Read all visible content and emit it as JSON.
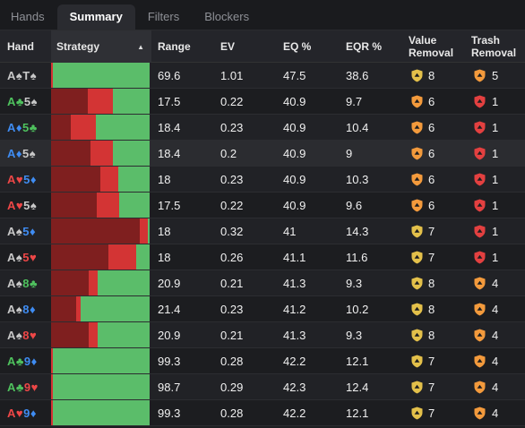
{
  "tabs": [
    {
      "label": "Hands",
      "active": false
    },
    {
      "label": "Summary",
      "active": true
    },
    {
      "label": "Filters",
      "active": false
    },
    {
      "label": "Blockers",
      "active": false
    }
  ],
  "columns": {
    "hand": "Hand",
    "strategy": "Strategy",
    "range": "Range",
    "ev": "EV",
    "eq": "EQ %",
    "eqr": "EQR %",
    "value_removal_1": "Value",
    "value_removal_2": "Removal",
    "trash_removal_1": "Trash",
    "trash_removal_2": "Removal"
  },
  "colors": {
    "spade": "#c8c8c8",
    "club": "#4fc25e",
    "diamond": "#3f8cf2",
    "heart": "#ee4747",
    "strat_dark": "#7f1f1f",
    "strat_red": "#d33434",
    "strat_green": "#5bbd6a",
    "shield_yellow": "#e3c04a",
    "shield_orange": "#f39a3c",
    "shield_red": "#e34040"
  },
  "rows": [
    {
      "hand": [
        {
          "r": "A",
          "s": "spade"
        },
        {
          "r": "T",
          "s": "spade"
        }
      ],
      "strategy": [
        0.0,
        0.02,
        0.98
      ],
      "range": "69.6",
      "ev": "1.01",
      "eq": "47.5",
      "eqr": "38.6",
      "vr": "8",
      "vr_icon": "yellow",
      "tr": "5",
      "tr_icon": "orange"
    },
    {
      "hand": [
        {
          "r": "A",
          "s": "club"
        },
        {
          "r": "5",
          "s": "spade"
        }
      ],
      "strategy": [
        0.37,
        0.26,
        0.37
      ],
      "range": "17.5",
      "ev": "0.22",
      "eq": "40.9",
      "eqr": "9.7",
      "vr": "6",
      "vr_icon": "orange",
      "tr": "1",
      "tr_icon": "red"
    },
    {
      "hand": [
        {
          "r": "A",
          "s": "diamond"
        },
        {
          "r": "5",
          "s": "club"
        }
      ],
      "strategy": [
        0.2,
        0.25,
        0.55
      ],
      "range": "18.4",
      "ev": "0.23",
      "eq": "40.9",
      "eqr": "10.4",
      "vr": "6",
      "vr_icon": "orange",
      "tr": "1",
      "tr_icon": "red"
    },
    {
      "hand": [
        {
          "r": "A",
          "s": "diamond"
        },
        {
          "r": "5",
          "s": "spade"
        }
      ],
      "strategy": [
        0.4,
        0.23,
        0.37
      ],
      "range": "18.4",
      "ev": "0.2",
      "eq": "40.9",
      "eqr": "9",
      "vr": "6",
      "vr_icon": "orange",
      "tr": "1",
      "tr_icon": "red"
    },
    {
      "hand": [
        {
          "r": "A",
          "s": "heart"
        },
        {
          "r": "5",
          "s": "diamond"
        }
      ],
      "strategy": [
        0.5,
        0.18,
        0.32
      ],
      "range": "18",
      "ev": "0.23",
      "eq": "40.9",
      "eqr": "10.3",
      "vr": "6",
      "vr_icon": "orange",
      "tr": "1",
      "tr_icon": "red"
    },
    {
      "hand": [
        {
          "r": "A",
          "s": "heart"
        },
        {
          "r": "5",
          "s": "spade"
        }
      ],
      "strategy": [
        0.46,
        0.23,
        0.31
      ],
      "range": "17.5",
      "ev": "0.22",
      "eq": "40.9",
      "eqr": "9.6",
      "vr": "6",
      "vr_icon": "orange",
      "tr": "1",
      "tr_icon": "red"
    },
    {
      "hand": [
        {
          "r": "A",
          "s": "spade"
        },
        {
          "r": "5",
          "s": "diamond"
        }
      ],
      "strategy": [
        0.9,
        0.08,
        0.02
      ],
      "range": "18",
      "ev": "0.32",
      "eq": "41",
      "eqr": "14.3",
      "vr": "7",
      "vr_icon": "yellow",
      "tr": "1",
      "tr_icon": "red"
    },
    {
      "hand": [
        {
          "r": "A",
          "s": "spade"
        },
        {
          "r": "5",
          "s": "heart"
        }
      ],
      "strategy": [
        0.58,
        0.28,
        0.14
      ],
      "range": "18",
      "ev": "0.26",
      "eq": "41.1",
      "eqr": "11.6",
      "vr": "7",
      "vr_icon": "yellow",
      "tr": "1",
      "tr_icon": "red"
    },
    {
      "hand": [
        {
          "r": "A",
          "s": "spade"
        },
        {
          "r": "8",
          "s": "club"
        }
      ],
      "strategy": [
        0.38,
        0.09,
        0.53
      ],
      "range": "20.9",
      "ev": "0.21",
      "eq": "41.3",
      "eqr": "9.3",
      "vr": "8",
      "vr_icon": "yellow",
      "tr": "4",
      "tr_icon": "orange"
    },
    {
      "hand": [
        {
          "r": "A",
          "s": "spade"
        },
        {
          "r": "8",
          "s": "diamond"
        }
      ],
      "strategy": [
        0.25,
        0.05,
        0.7
      ],
      "range": "21.4",
      "ev": "0.23",
      "eq": "41.2",
      "eqr": "10.2",
      "vr": "8",
      "vr_icon": "yellow",
      "tr": "4",
      "tr_icon": "orange"
    },
    {
      "hand": [
        {
          "r": "A",
          "s": "spade"
        },
        {
          "r": "8",
          "s": "heart"
        }
      ],
      "strategy": [
        0.38,
        0.09,
        0.53
      ],
      "range": "20.9",
      "ev": "0.21",
      "eq": "41.3",
      "eqr": "9.3",
      "vr": "8",
      "vr_icon": "yellow",
      "tr": "4",
      "tr_icon": "orange"
    },
    {
      "hand": [
        {
          "r": "A",
          "s": "club"
        },
        {
          "r": "9",
          "s": "diamond"
        }
      ],
      "strategy": [
        0.0,
        0.02,
        0.98
      ],
      "range": "99.3",
      "ev": "0.28",
      "eq": "42.2",
      "eqr": "12.1",
      "vr": "7",
      "vr_icon": "yellow",
      "tr": "4",
      "tr_icon": "orange"
    },
    {
      "hand": [
        {
          "r": "A",
          "s": "club"
        },
        {
          "r": "9",
          "s": "heart"
        }
      ],
      "strategy": [
        0.0,
        0.02,
        0.98
      ],
      "range": "98.7",
      "ev": "0.29",
      "eq": "42.3",
      "eqr": "12.4",
      "vr": "7",
      "vr_icon": "yellow",
      "tr": "4",
      "tr_icon": "orange"
    },
    {
      "hand": [
        {
          "r": "A",
          "s": "heart"
        },
        {
          "r": "9",
          "s": "diamond"
        }
      ],
      "strategy": [
        0.0,
        0.02,
        0.98
      ],
      "range": "99.3",
      "ev": "0.28",
      "eq": "42.2",
      "eqr": "12.1",
      "vr": "7",
      "vr_icon": "yellow",
      "tr": "4",
      "tr_icon": "orange"
    }
  ]
}
